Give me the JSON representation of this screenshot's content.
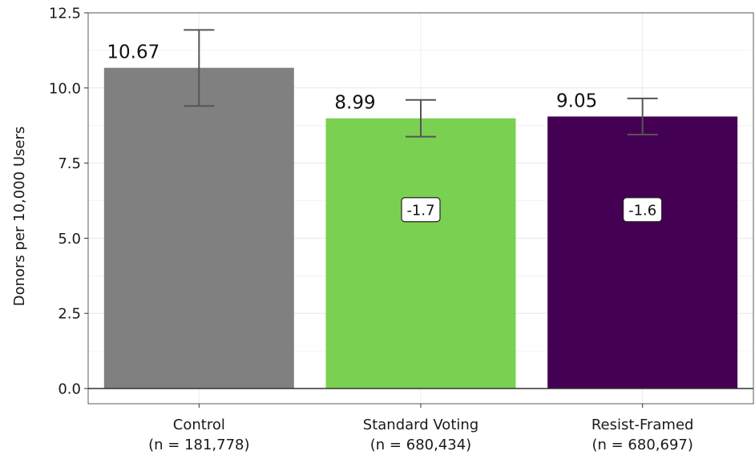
{
  "chart_data": {
    "type": "bar",
    "title": "",
    "xlabel": "",
    "ylabel": "Donors per 10,000 Users",
    "ylim": [
      0,
      12.5
    ],
    "yticks": [
      "0.0",
      "2.5",
      "5.0",
      "7.5",
      "10.0",
      "12.5"
    ],
    "grid": true,
    "legend": "none",
    "categories": [
      {
        "name": "Control",
        "n_label": "(n = 181,778)"
      },
      {
        "name": "Standard Voting",
        "n_label": "(n = 680,434)"
      },
      {
        "name": "Resist-Framed",
        "n_label": "(n = 680,697)"
      }
    ],
    "values": [
      10.67,
      8.99,
      9.05
    ],
    "value_labels": [
      "10.67",
      "8.99",
      "9.05"
    ],
    "error_bars": [
      {
        "low": 9.4,
        "high": 11.93
      },
      {
        "low": 8.38,
        "high": 9.6
      },
      {
        "low": 8.45,
        "high": 9.65
      }
    ],
    "difference_labels": [
      "",
      "-1.7",
      "-1.6"
    ],
    "difference_label_y": [
      null,
      5.95,
      5.95
    ],
    "colors": [
      "#808080",
      "#7ad151",
      "#440154"
    ]
  }
}
